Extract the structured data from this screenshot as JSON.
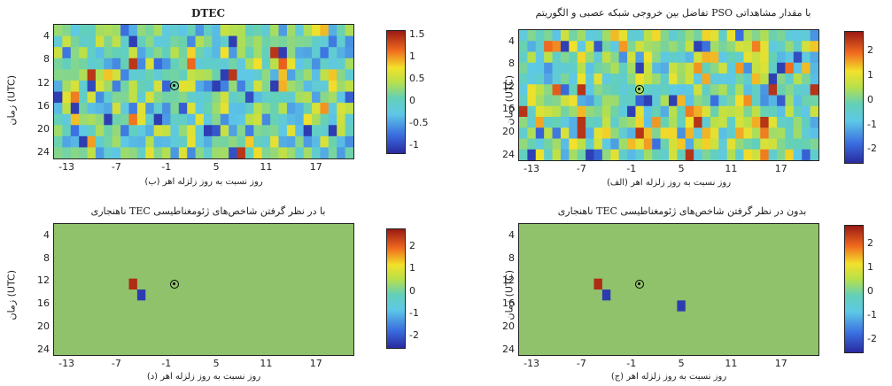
{
  "chart_data": [
    {
      "type": "heatmap",
      "id": "dtec",
      "title": "DTEC",
      "xlabel": "روز نسبت به روز زلزله اهر (ب)",
      "ylabel": "زمان (UTC)",
      "x_ticks": [
        "-13",
        "-7",
        "-1",
        "5",
        "11",
        "17"
      ],
      "y_ticks": [
        "4",
        "8",
        "12",
        "16",
        "20",
        "24"
      ],
      "xlim": [
        -14,
        22
      ],
      "ylim": [
        2,
        25
      ],
      "colorbar_ticks": [
        "1.5",
        "1",
        "0.5",
        "0",
        "-0.5",
        "-1"
      ],
      "clim": [
        -1.2,
        1.6
      ],
      "earthquake_marker": {
        "day": 0,
        "hour": 12
      },
      "mode": "random",
      "seed": 7
    },
    {
      "type": "heatmap",
      "id": "nn_pso_diff",
      "title": "تفاضل بین خروجی شبکه عصبی و الگوریتم PSO با مقدار مشاهداتی",
      "xlabel": "روز نسبت به روز زلزله اهر (الف)",
      "ylabel": "زمان (UTC)",
      "x_ticks": [
        "-13",
        "-7",
        "-1",
        "5",
        "11",
        "17"
      ],
      "y_ticks": [
        "4",
        "8",
        "12",
        "16",
        "20",
        "24"
      ],
      "xlim": [
        -14,
        22
      ],
      "ylim": [
        2,
        25
      ],
      "colorbar_ticks": [
        "2",
        "1",
        "0",
        "-1",
        "-2"
      ],
      "clim": [
        -2.6,
        2.8
      ],
      "earthquake_marker": {
        "day": 0,
        "hour": 12
      },
      "mode": "random",
      "seed": 19
    },
    {
      "type": "heatmap",
      "id": "anomaly_with_indices",
      "title": "ناهنجاری TEC با در نظر گرفتن شاخص‌های ژئومغناطیسی",
      "xlabel": "روز نسبت به روز زلزله اهر (د)",
      "ylabel": "زمان (UTC)",
      "x_ticks": [
        "-13",
        "-7",
        "-1",
        "5",
        "11",
        "17"
      ],
      "y_ticks": [
        "4",
        "8",
        "12",
        "16",
        "20",
        "24"
      ],
      "xlim": [
        -14,
        22
      ],
      "ylim": [
        2,
        25
      ],
      "colorbar_ticks": [
        "2",
        "1",
        "0",
        "-1",
        "-2"
      ],
      "clim": [
        -2.6,
        2.8
      ],
      "earthquake_marker": {
        "day": 0,
        "hour": 12
      },
      "mode": "sparse",
      "background_value": 0,
      "cells": [
        {
          "day": -5,
          "hour": 12,
          "value": 2.6
        },
        {
          "day": -4,
          "hour": 14,
          "value": -2.4
        }
      ]
    },
    {
      "type": "heatmap",
      "id": "anomaly_without_indices",
      "title": "ناهنجاری TEC بدون در نظر گرفتن شاخص‌های ژئومغناطیسی",
      "xlabel": "روز نسبت به روز زلزله اهر (ج)",
      "ylabel": "زمان (UTC)",
      "x_ticks": [
        "-13",
        "-7",
        "-1",
        "5",
        "11",
        "17"
      ],
      "y_ticks": [
        "4",
        "8",
        "12",
        "16",
        "20",
        "24"
      ],
      "xlim": [
        -14,
        22
      ],
      "ylim": [
        2,
        25
      ],
      "colorbar_ticks": [
        "2",
        "1",
        "0",
        "-1",
        "-2"
      ],
      "clim": [
        -2.6,
        2.8
      ],
      "earthquake_marker": {
        "day": 0,
        "hour": 12
      },
      "mode": "sparse",
      "background_value": 0,
      "cells": [
        {
          "day": -5,
          "hour": 12,
          "value": 2.6
        },
        {
          "day": -4,
          "hour": 14,
          "value": -2.4
        },
        {
          "day": 5,
          "hour": 16,
          "value": -2.4
        }
      ]
    }
  ]
}
